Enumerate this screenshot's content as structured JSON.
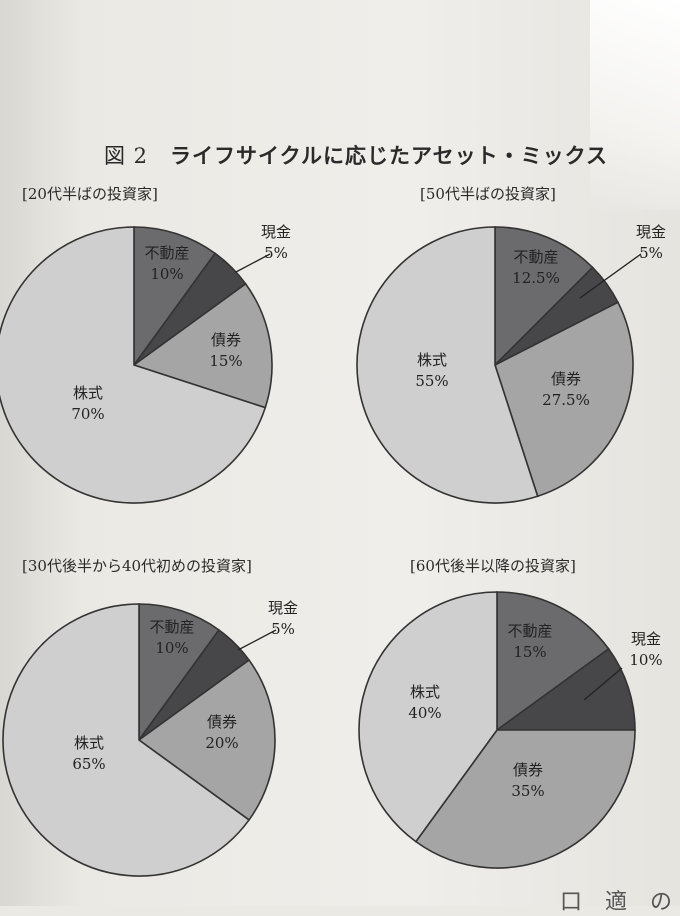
{
  "figure": {
    "number": "図 2",
    "title": "ライフサイクルに応じたアセット・ミックス"
  },
  "bottom_text": "口 適 の",
  "colors": {
    "不動産": "#6b6b6d",
    "現金": "#474749",
    "債券": "#a5a5a6",
    "株式": "#cfcfcf",
    "outline": "#333333"
  },
  "chart_data": [
    {
      "type": "pie",
      "title": "[20代半ばの投資家]",
      "slices": [
        {
          "name": "不動産",
          "value": 10,
          "value_label": "10%"
        },
        {
          "name": "現金",
          "value": 5,
          "value_label": "5%"
        },
        {
          "name": "債券",
          "value": 15,
          "value_label": "15%"
        },
        {
          "name": "株式",
          "value": 70,
          "value_label": "70%"
        }
      ]
    },
    {
      "type": "pie",
      "title": "[50代半ばの投資家]",
      "slices": [
        {
          "name": "不動産",
          "value": 12.5,
          "value_label": "12.5%"
        },
        {
          "name": "現金",
          "value": 5,
          "value_label": "5%"
        },
        {
          "name": "債券",
          "value": 27.5,
          "value_label": "27.5%"
        },
        {
          "name": "株式",
          "value": 55,
          "value_label": "55%"
        }
      ]
    },
    {
      "type": "pie",
      "title": "[30代後半から40代初めの投資家]",
      "slices": [
        {
          "name": "不動産",
          "value": 10,
          "value_label": "10%"
        },
        {
          "name": "現金",
          "value": 5,
          "value_label": "5%"
        },
        {
          "name": "債券",
          "value": 20,
          "value_label": "20%"
        },
        {
          "name": "株式",
          "value": 65,
          "value_label": "65%"
        }
      ]
    },
    {
      "type": "pie",
      "title": "[60代後半以降の投資家]",
      "slices": [
        {
          "name": "不動産",
          "value": 15,
          "value_label": "15%"
        },
        {
          "name": "現金",
          "value": 10,
          "value_label": "10%"
        },
        {
          "name": "債券",
          "value": 35,
          "value_label": "35%"
        },
        {
          "name": "株式",
          "value": 40,
          "value_label": "40%"
        }
      ]
    }
  ]
}
